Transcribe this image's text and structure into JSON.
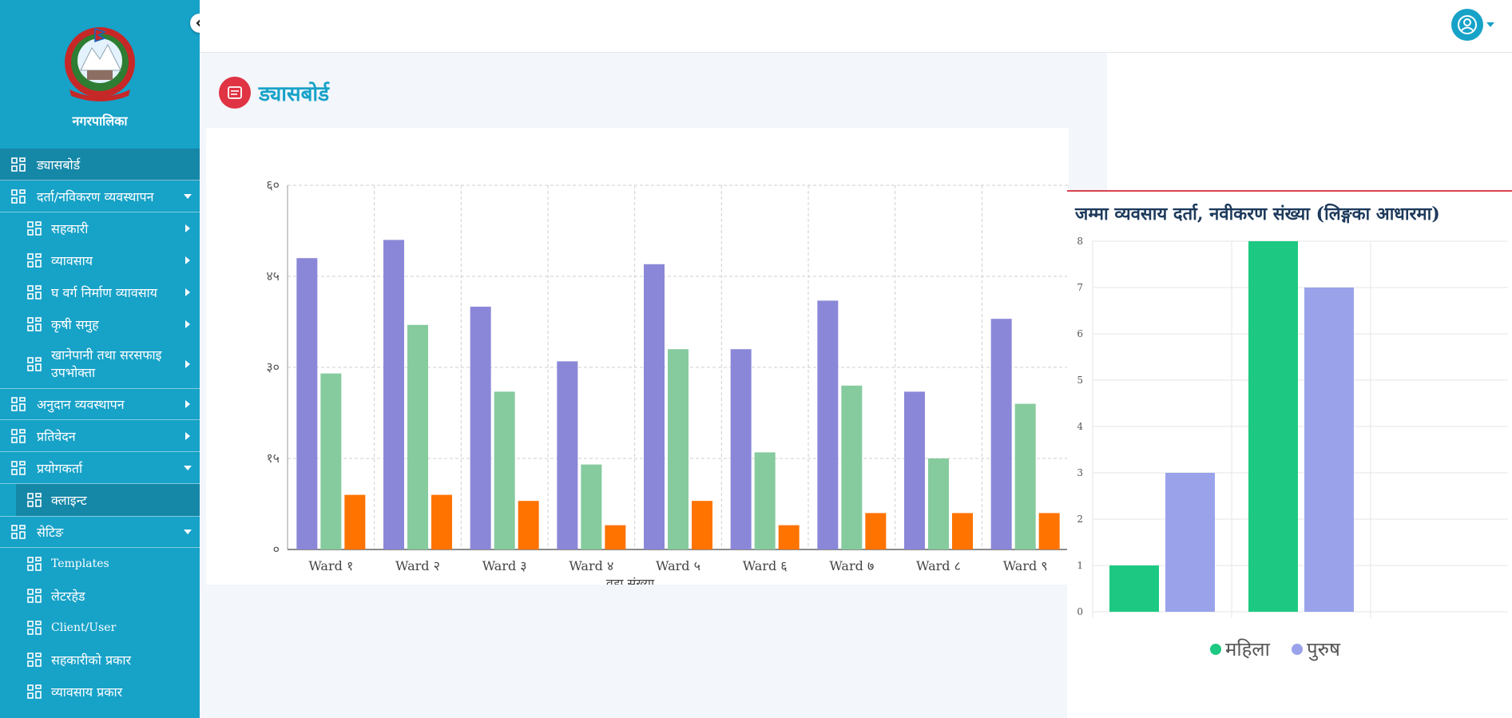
{
  "sidebar": {
    "municipality": "नगरपालिका",
    "items": [
      {
        "label": "ड्यासबोर्ड"
      },
      {
        "label": "दर्ता/नविकरण व्यवस्थापन"
      },
      {
        "label": "सहकारी"
      },
      {
        "label": "व्यावसाय"
      },
      {
        "label": "घ वर्ग निर्माण व्यावसाय"
      },
      {
        "label": "कृषी समुह"
      },
      {
        "label": "खानेपानी तथा सरसफाइ उपभोक्ता"
      },
      {
        "label": "अनुदान व्यवस्थापन"
      },
      {
        "label": "प्रतिवेदन"
      },
      {
        "label": "प्रयोगकर्ता"
      },
      {
        "label": "क्लाइन्ट"
      },
      {
        "label": "सेटिङ"
      },
      {
        "label": "Templates"
      },
      {
        "label": "लेटरहेड"
      },
      {
        "label": "Client/User"
      },
      {
        "label": "सहकारीको प्रकार"
      },
      {
        "label": "व्यावसाय प्रकार"
      }
    ]
  },
  "header": {
    "page_title": "ड्यासबोर्ड"
  },
  "colors": {
    "accent": "#17a2c8",
    "danger": "#e03344",
    "purple": "#8b87d8",
    "green": "#86cb9e",
    "orange": "#ff7300",
    "female": "#1dc982",
    "male": "#9aa3ea"
  },
  "icons": {
    "menu": "grid-icon",
    "user": "user-circle-icon",
    "title": "document-icon",
    "collapse": "chevron-left-icon"
  },
  "chart_data": [
    {
      "type": "bar",
      "categories": [
        "Ward १",
        "Ward २",
        "Ward ३",
        "Ward ४",
        "Ward ५",
        "Ward ६",
        "Ward ७",
        "Ward ८",
        "Ward ९"
      ],
      "series": [
        {
          "values": [
            48,
            51,
            40,
            31,
            47,
            33,
            41,
            26,
            38
          ]
        },
        {
          "values": [
            29,
            37,
            26,
            14,
            33,
            16,
            27,
            15,
            24
          ]
        },
        {
          "values": [
            9,
            9,
            8,
            4,
            8,
            4,
            6,
            6,
            6
          ]
        }
      ],
      "y_ticks": [
        "०",
        "१५",
        "३०",
        "४५",
        "६०"
      ],
      "ylim": [
        0,
        60
      ],
      "xlabel": "वडा संख्या",
      "grid": true
    },
    {
      "type": "bar",
      "title": "जम्मा व्यवसाय दर्ता, नवीकरण संख्या (लिङ्गका आधारमा)",
      "groups": 2,
      "series": [
        {
          "name": "महिला",
          "values": [
            1,
            8
          ]
        },
        {
          "name": "पुरुष",
          "values": [
            3,
            7
          ]
        }
      ],
      "y_ticks": [
        "0",
        "1",
        "2",
        "3",
        "4",
        "5",
        "6",
        "7",
        "8"
      ],
      "ylim": [
        0,
        8
      ],
      "legend_position": "bottom",
      "grid": true
    }
  ]
}
